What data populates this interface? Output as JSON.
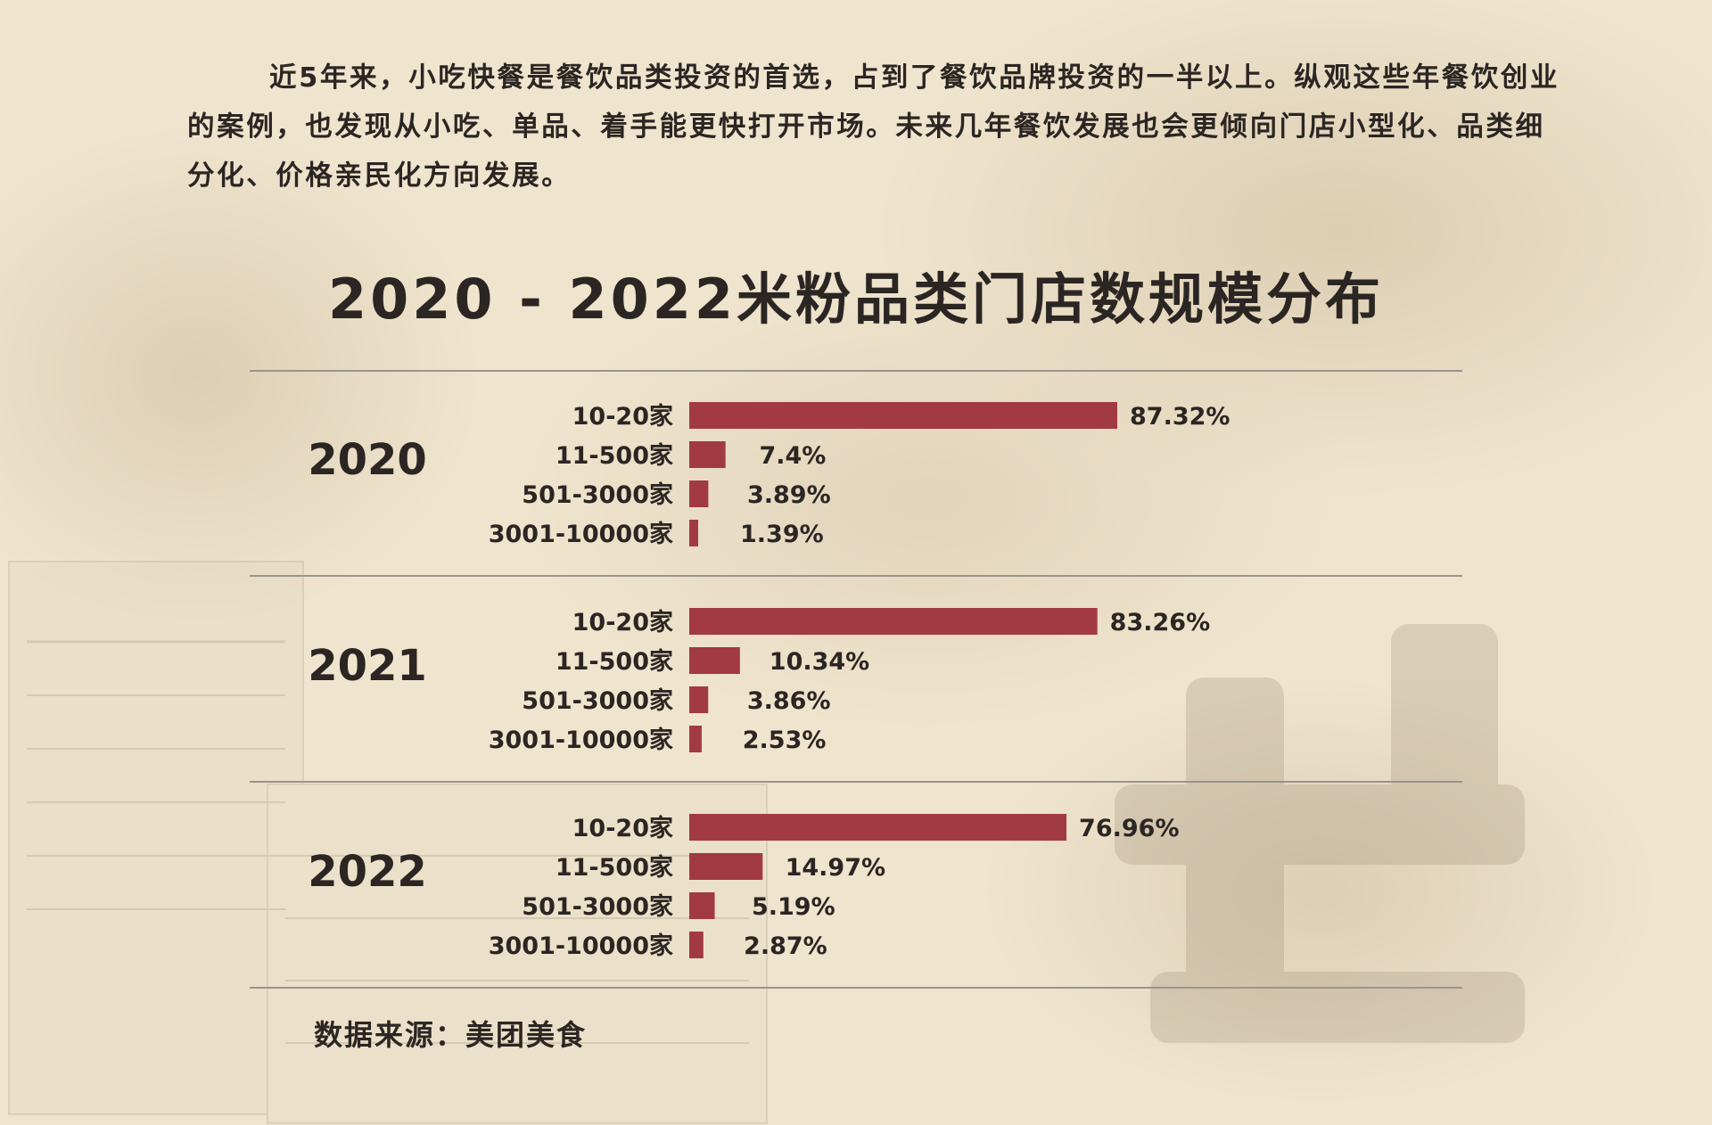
{
  "intro": {
    "text": "近5年来，小吃快餐是餐饮品类投资的首选，占到了餐饮品牌投资的一半以上。纵观这些年餐饮创业的案例，也发现从小吃、单品、着手能更快打开市场。未来几年餐饮发展也会更倾向门店小型化、品类细分化、价格亲民化方向发展。"
  },
  "chart_data": {
    "type": "bar",
    "orientation": "horizontal",
    "title": "2020 - 2022米粉品类门店数规模分布",
    "categories": [
      "10-20家",
      "11-500家",
      "501-3000家",
      "3001-10000家"
    ],
    "unit": "%",
    "series": [
      {
        "name": "2020",
        "values": [
          87.32,
          7.4,
          3.89,
          1.39
        ]
      },
      {
        "name": "2021",
        "values": [
          83.26,
          10.34,
          3.86,
          2.53
        ]
      },
      {
        "name": "2022",
        "values": [
          76.96,
          14.97,
          5.19,
          2.87
        ]
      }
    ],
    "value_labels": [
      [
        "87.32%",
        "7.4%",
        "3.89%",
        "1.39%"
      ],
      [
        "83.26%",
        "10.34%",
        "3.86%",
        "2.53%"
      ],
      [
        "76.96%",
        "14.97%",
        "5.19%",
        "2.87%"
      ]
    ],
    "bar_color": "#a23a41",
    "legend": "none",
    "grid": false
  },
  "source": {
    "text": "数据来源：美团美食"
  },
  "colors": {
    "background": "#f1e7d2",
    "text": "#2b2623",
    "bar": "#a23a41",
    "divider": "#9a948c"
  }
}
